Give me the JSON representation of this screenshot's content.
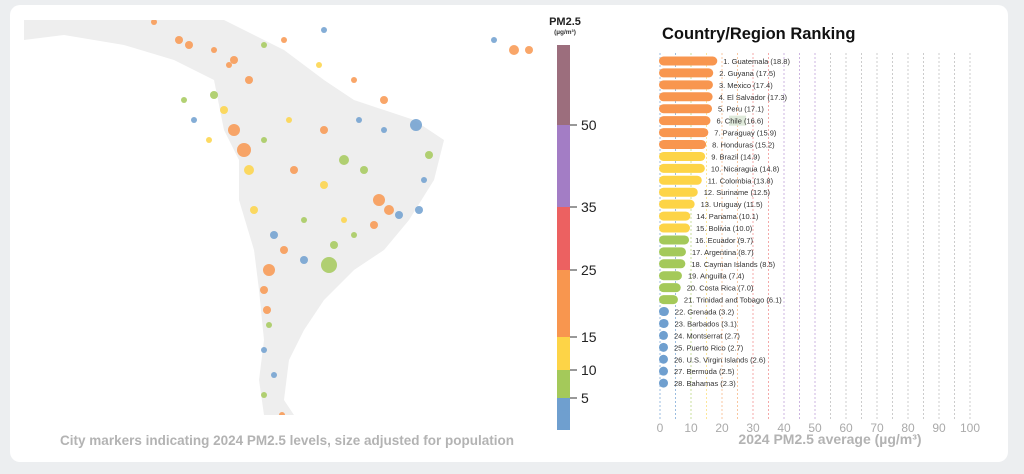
{
  "map": {
    "caption": "City markers indicating 2024 PM2.5 levels, size adjusted for population"
  },
  "legend": {
    "title": "PM2.5",
    "unit": "(µg/m³)",
    "thresholds": [
      5,
      10,
      15,
      25,
      35,
      50
    ],
    "tick_labels": [
      "5",
      "10",
      "15",
      "25",
      "35",
      "50"
    ],
    "colors": [
      "#6f9fcf",
      "#a4c95a",
      "#fdd447",
      "#f8964f",
      "#ec6161",
      "#a37dc5",
      "#9c6e7d"
    ]
  },
  "chart_data": {
    "type": "bar",
    "orientation": "horizontal",
    "title": "Country/Region Ranking",
    "xlabel": "2024 PM2.5 average (µg/m³)",
    "xlim": [
      0,
      100
    ],
    "xticks": [
      0,
      10,
      20,
      30,
      40,
      50,
      60,
      70,
      80,
      90,
      100
    ],
    "grid": true,
    "highlighted": "Chile",
    "categories": [
      "Guatemala",
      "Guyana",
      "Mexico",
      "El Salvador",
      "Peru",
      "Chile",
      "Paraguay",
      "Honduras",
      "Brazil",
      "Nicaragua",
      "Colombia",
      "Suriname",
      "Uruguay",
      "Panama",
      "Bolivia",
      "Ecuador",
      "Argentina",
      "Cayman Islands",
      "Anguilla",
      "Costa Rica",
      "Trinidad and Tobago",
      "Grenada",
      "Barbados",
      "Montserrat",
      "Puerto Rico",
      "U.S. Virgin Islands",
      "Bermuda",
      "Bahamas"
    ],
    "values": [
      18.8,
      17.5,
      17.4,
      17.3,
      17.1,
      16.6,
      15.9,
      15.2,
      14.9,
      14.8,
      13.8,
      12.5,
      11.5,
      10.1,
      10.0,
      9.7,
      8.7,
      8.5,
      7.4,
      7.0,
      6.1,
      3.2,
      3.1,
      2.7,
      2.7,
      2.6,
      2.5,
      2.3
    ]
  }
}
